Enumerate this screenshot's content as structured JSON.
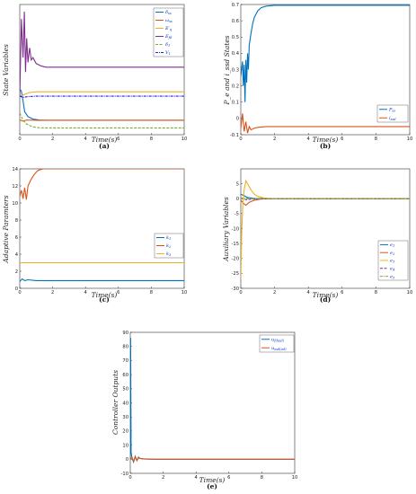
{
  "figure": {
    "panel_labels": [
      "(a)",
      "(b)",
      "(c)",
      "(d)",
      "(e)"
    ]
  },
  "colors": {
    "blue": "#0072BD",
    "orange": "#D95319",
    "yellow": "#EDB120",
    "purple": "#7E2F8E",
    "green": "#77AC30",
    "cyan": "#4DBEEE",
    "navy": "#1a1aff"
  },
  "chart_data": [
    {
      "id": "a",
      "type": "line",
      "panel_label": "(a)",
      "xlabel": "Time(s)",
      "ylabel": "State   Variables",
      "xlim": [
        0,
        10
      ],
      "x_ticks": [
        0,
        2,
        4,
        6,
        8,
        10
      ],
      "y_ticks": [],
      "ylim": [
        -0.6,
        4.8
      ],
      "legend": "top-right",
      "series": [
        {
          "name": "δ_ss",
          "color": "#0072BD",
          "style": "solid",
          "x": [
            0,
            0.1,
            0.2,
            0.3,
            0.5,
            0.8,
            1.2,
            1.6,
            2,
            10
          ],
          "y": [
            1.3,
            1.2,
            0.8,
            0.35,
            0.15,
            0.05,
            0.01,
            0.0,
            0.0,
            0.0
          ]
        },
        {
          "name": "ω_ss",
          "color": "#D95319",
          "style": "solid",
          "x": [
            0,
            0.2,
            0.4,
            1,
            2,
            10
          ],
          "y": [
            0.02,
            -0.04,
            0.01,
            0.0,
            0.0,
            0.0
          ]
        },
        {
          "name": "E′_q",
          "color": "#EDB120",
          "style": "solid",
          "x": [
            0,
            0.2,
            0.4,
            0.6,
            1,
            2,
            10
          ],
          "y": [
            1.0,
            1.05,
            1.1,
            1.15,
            1.18,
            1.18,
            1.18
          ]
        },
        {
          "name": "E_fd",
          "color": "#7E2F8E",
          "style": "solid",
          "x": [
            0,
            0.1,
            0.2,
            0.28,
            0.35,
            0.42,
            0.5,
            0.6,
            0.7,
            0.8,
            1.0,
            1.3,
            1.6,
            2,
            10
          ],
          "y": [
            1.0,
            4.2,
            2.6,
            4.5,
            2.0,
            3.4,
            2.4,
            3.0,
            2.5,
            2.6,
            2.35,
            2.25,
            2.2,
            2.2,
            2.2
          ]
        },
        {
          "name": "δ_1",
          "color": "#77AC30",
          "style": "dashed",
          "x": [
            0,
            0.2,
            0.4,
            0.7,
            1.0,
            1.5,
            2,
            10
          ],
          "y": [
            0.3,
            0.0,
            -0.15,
            -0.25,
            -0.3,
            -0.32,
            -0.32,
            -0.32
          ]
        },
        {
          "name": "V_1",
          "color": "#1a1aff",
          "style": "dashdot",
          "x": [
            0,
            0.2,
            0.5,
            1,
            2,
            10
          ],
          "y": [
            1.0,
            0.95,
            0.98,
            1.0,
            1.0,
            1.0
          ]
        }
      ]
    },
    {
      "id": "b",
      "type": "line",
      "panel_label": "(b)",
      "xlabel": "Time(s)",
      "ylabel": "P_e    and    i_ssd    States",
      "xlim": [
        0,
        10
      ],
      "ylim": [
        -0.1,
        0.7
      ],
      "x_ticks": [
        0,
        2,
        4,
        6,
        8,
        10
      ],
      "y_ticks": [
        -0.1,
        0,
        0.1,
        0.2,
        0.3,
        0.4,
        0.5,
        0.6,
        0.7
      ],
      "legend": "bottom-right",
      "series": [
        {
          "name": "P_ss",
          "color": "#0072BD",
          "style": "solid",
          "x": [
            0,
            0.1,
            0.15,
            0.2,
            0.25,
            0.3,
            0.35,
            0.4,
            0.45,
            0.5,
            0.6,
            0.7,
            0.8,
            1.0,
            1.2,
            1.5,
            2,
            10
          ],
          "y": [
            0.26,
            0.35,
            0.2,
            0.33,
            0.1,
            0.36,
            0.22,
            0.4,
            0.3,
            0.45,
            0.52,
            0.58,
            0.62,
            0.66,
            0.68,
            0.69,
            0.695,
            0.695
          ]
        },
        {
          "name": "i_ssd",
          "color": "#D95319",
          "style": "solid",
          "x": [
            0,
            0.1,
            0.2,
            0.3,
            0.4,
            0.5,
            0.6,
            0.8,
            1.0,
            1.5,
            2,
            10
          ],
          "y": [
            -0.06,
            0.03,
            -0.08,
            -0.02,
            -0.09,
            -0.05,
            -0.07,
            -0.06,
            -0.055,
            -0.05,
            -0.05,
            -0.05
          ]
        }
      ]
    },
    {
      "id": "c",
      "type": "line",
      "panel_label": "(c)",
      "xlabel": "Time(s)",
      "ylabel": "Adaptive   Paramters",
      "xlim": [
        0,
        10
      ],
      "ylim": [
        0,
        14
      ],
      "x_ticks": [
        0,
        2,
        4,
        6,
        8,
        10
      ],
      "y_ticks": [
        0,
        2,
        4,
        6,
        8,
        10,
        12,
        14
      ],
      "legend": "right",
      "series": [
        {
          "name": "k_1",
          "color": "#0072BD",
          "style": "solid",
          "x": [
            0,
            0.15,
            0.3,
            0.5,
            1,
            2,
            10
          ],
          "y": [
            0.8,
            1.1,
            0.9,
            1.0,
            0.9,
            0.9,
            0.9
          ]
        },
        {
          "name": "k_2",
          "color": "#D95319",
          "style": "solid",
          "x": [
            0,
            0.1,
            0.2,
            0.3,
            0.4,
            0.5,
            0.7,
            0.9,
            1.1,
            1.4,
            1.8,
            2,
            10
          ],
          "y": [
            10.8,
            11.5,
            10.5,
            11.8,
            10.4,
            12.0,
            12.8,
            13.4,
            13.8,
            14.0,
            14.0,
            14.0,
            14.0
          ]
        },
        {
          "name": "k_3",
          "color": "#EDB120",
          "style": "solid",
          "x": [
            0,
            10
          ],
          "y": [
            3.0,
            3.0
          ]
        }
      ]
    },
    {
      "id": "d",
      "type": "line",
      "panel_label": "(d)",
      "xlabel": "Time(s)",
      "ylabel": "Auxiliary   Variables",
      "xlim": [
        0,
        10
      ],
      "ylim": [
        -30,
        10
      ],
      "x_ticks": [
        0,
        2,
        4,
        6,
        8,
        10
      ],
      "y_ticks": [
        -30,
        -25,
        -20,
        -15,
        -10,
        -5,
        0,
        5
      ],
      "legend": "bottom-right",
      "series": [
        {
          "name": "e_1",
          "color": "#0072BD",
          "style": "solid",
          "x": [
            0,
            0.2,
            0.4,
            0.8,
            1.5,
            10
          ],
          "y": [
            1.5,
            1.0,
            0.4,
            0.1,
            0.0,
            0.0
          ]
        },
        {
          "name": "e_2",
          "color": "#D95319",
          "style": "solid",
          "x": [
            0,
            0.15,
            0.3,
            0.5,
            0.8,
            1.2,
            2,
            10
          ],
          "y": [
            -0.5,
            -1.5,
            -2.2,
            -1.2,
            -0.5,
            -0.1,
            0.0,
            0.0
          ]
        },
        {
          "name": "e_3",
          "color": "#EDB120",
          "style": "solid",
          "x": [
            0,
            0.05,
            0.12,
            0.2,
            0.3,
            0.4,
            0.6,
            0.8,
            1.0,
            1.4,
            2,
            10
          ],
          "y": [
            -27,
            -12,
            -2,
            3,
            6,
            5,
            3,
            1.5,
            0.8,
            0.2,
            0.0,
            0.0
          ]
        },
        {
          "name": "e_4",
          "color": "#7E2F8E",
          "style": "dashed",
          "x": [
            0,
            0.3,
            0.8,
            1.5,
            10
          ],
          "y": [
            0.3,
            -0.3,
            -0.1,
            0.0,
            0.0
          ]
        },
        {
          "name": "e_5",
          "color": "#77AC30",
          "style": "dashdot",
          "x": [
            0,
            0.3,
            0.8,
            1.5,
            10
          ],
          "y": [
            0.2,
            0.1,
            0.0,
            0.0,
            0.0
          ]
        }
      ]
    },
    {
      "id": "e",
      "type": "line",
      "panel_label": "(e)",
      "xlabel": "Time(s)",
      "ylabel": "Controller   Outputs",
      "xlim": [
        0,
        10
      ],
      "ylim": [
        -10,
        90
      ],
      "x_ticks": [
        0,
        2,
        4,
        6,
        8,
        10
      ],
      "y_ticks": [
        -10,
        0,
        10,
        20,
        30,
        40,
        50,
        60,
        70,
        80,
        90
      ],
      "legend": "top-right",
      "series": [
        {
          "name": "u_fd(ad)",
          "color": "#0072BD",
          "style": "solid",
          "x": [
            0,
            0.02,
            0.05,
            0.1,
            0.2,
            0.3,
            0.4,
            0.5,
            0.6,
            0.8,
            1.0,
            1.5,
            2,
            10
          ],
          "y": [
            0,
            86,
            5,
            1,
            -2,
            2,
            -1,
            1.5,
            0.5,
            0.3,
            0.2,
            0.0,
            0.0,
            0.0
          ]
        },
        {
          "name": "u_ssd(ad)",
          "color": "#D95319",
          "style": "solid",
          "x": [
            0,
            0.1,
            0.2,
            0.3,
            0.4,
            0.5,
            0.7,
            1.0,
            1.5,
            2,
            10
          ],
          "y": [
            0,
            1.5,
            -1.5,
            2,
            -1,
            1,
            0.3,
            0.1,
            0.0,
            0.0,
            0.0
          ]
        }
      ]
    }
  ]
}
